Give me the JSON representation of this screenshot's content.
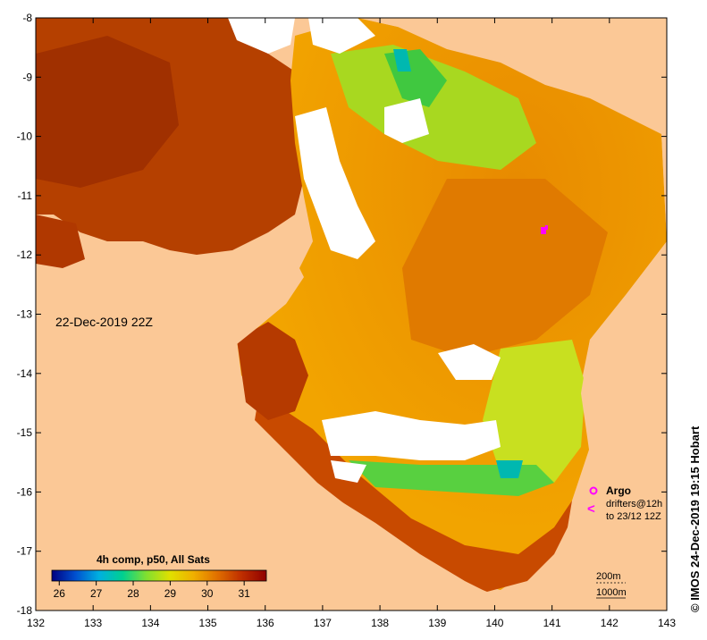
{
  "map": {
    "timestamp": "22-Dec-2019 22Z",
    "credit": "© IMOS 24-Dec-2019 19:15 Hobart",
    "x_axis": {
      "ticks": [
        "132",
        "133",
        "134",
        "135",
        "136",
        "137",
        "138",
        "139",
        "140",
        "141",
        "142",
        "143"
      ],
      "range": [
        132,
        143
      ]
    },
    "y_axis": {
      "ticks": [
        "-8",
        "-9",
        "-10",
        "-11",
        "-12",
        "-13",
        "-14",
        "-15",
        "-16",
        "-17",
        "-18"
      ],
      "range": [
        -18,
        -8
      ]
    },
    "colorbar": {
      "title": "4h comp, p50, All Sats",
      "ticks": [
        "26",
        "27",
        "28",
        "29",
        "30",
        "31"
      ],
      "range": [
        25.8,
        31.6
      ],
      "colors": [
        "#000080",
        "#0050d0",
        "#00b0e0",
        "#00d090",
        "#80e030",
        "#e0e000",
        "#f0b000",
        "#e07000",
        "#c03000",
        "#900000"
      ]
    },
    "legend": {
      "argo_label": "Argo",
      "drifter_label": "drifters@12h",
      "drifter_sub": "to 23/12 12Z",
      "marker_color": "#ff00ff"
    },
    "contours": {
      "line1": "200m",
      "line2": "1000m"
    },
    "colors": {
      "land": "#fbc896",
      "no_data": "#ffffff",
      "sst_hot": "#b83a00",
      "sst_warm": "#e07800",
      "sst_mid": "#f0a800",
      "sst_cool": "#c8d800",
      "sst_green": "#40d040"
    }
  }
}
